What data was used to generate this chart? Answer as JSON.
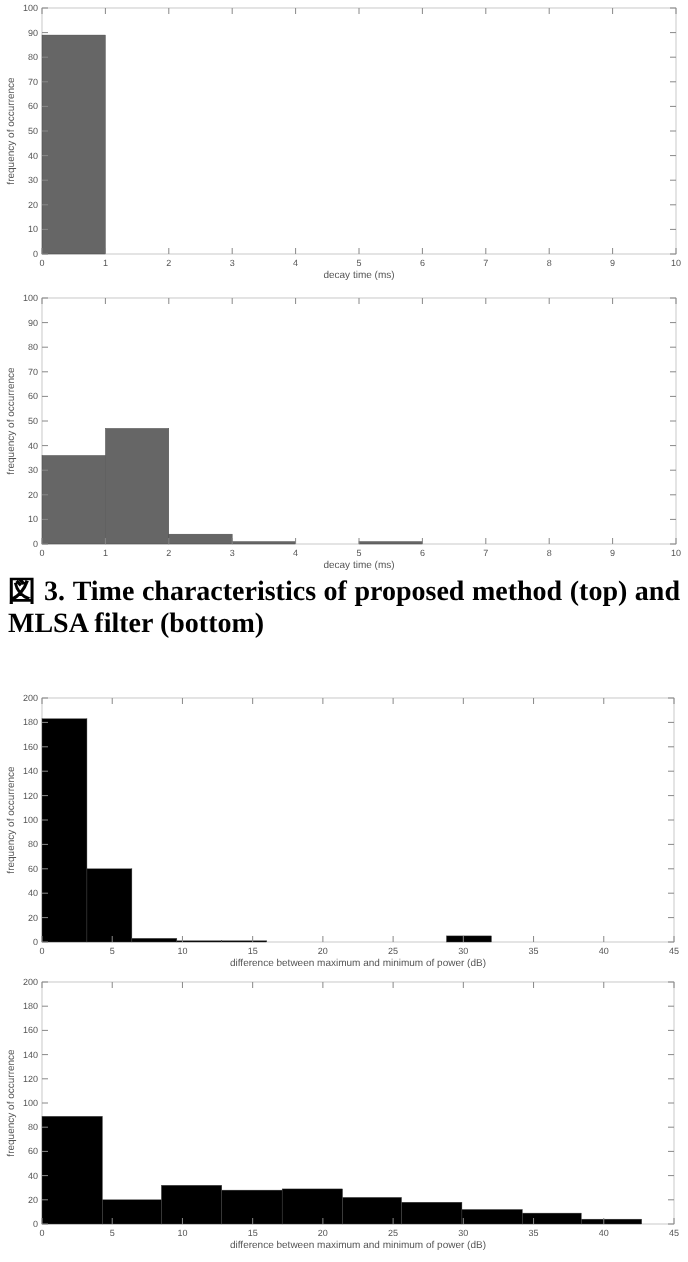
{
  "chart_data": [
    {
      "type": "histogram",
      "xlabel": "decay time (ms)",
      "ylabel": "frequency of occurrence",
      "bins": [
        0,
        1,
        2,
        3,
        4,
        5,
        6,
        7,
        8,
        9,
        10
      ],
      "values": [
        89,
        0,
        0,
        0,
        0,
        0,
        0,
        0,
        0,
        0
      ],
      "color": "#666666",
      "xlim": [
        0,
        10
      ],
      "ylim": [
        0,
        100
      ],
      "xticks": [
        0,
        1,
        2,
        3,
        4,
        5,
        6,
        7,
        8,
        9,
        10
      ],
      "yticks": [
        0,
        10,
        20,
        30,
        40,
        50,
        60,
        70,
        80,
        90,
        100
      ]
    },
    {
      "type": "histogram",
      "xlabel": "decay time (ms)",
      "ylabel": "frequency of occurrence",
      "bins": [
        0,
        1,
        2,
        3,
        4,
        5,
        6,
        7,
        8,
        9,
        10
      ],
      "values": [
        36,
        47,
        4,
        1,
        0,
        1,
        0,
        0,
        0,
        0
      ],
      "color": "#666666",
      "xlim": [
        0,
        10
      ],
      "ylim": [
        0,
        100
      ],
      "xticks": [
        0,
        1,
        2,
        3,
        4,
        5,
        6,
        7,
        8,
        9,
        10
      ],
      "yticks": [
        0,
        10,
        20,
        30,
        40,
        50,
        60,
        70,
        80,
        90,
        100
      ],
      "annotations": [
        "図 3. Time characteristics of proposed method (top) and MLSA filter (bottom)"
      ]
    },
    {
      "type": "histogram",
      "xlabel": "difference between maximum and minimum of power (dB)",
      "ylabel": "frequency of occurrence",
      "bins": [
        0,
        3.2,
        6.4,
        9.6,
        12.8,
        16,
        19.2,
        22.4,
        25.6,
        28.8,
        32
      ],
      "values": [
        183,
        60,
        3,
        1,
        1,
        0,
        0,
        0,
        0,
        5
      ],
      "color": "#000000",
      "xlim": [
        0,
        45
      ],
      "ylim": [
        0,
        200
      ],
      "xticks": [
        0,
        5,
        10,
        15,
        20,
        25,
        30,
        35,
        40,
        45
      ],
      "yticks": [
        0,
        20,
        40,
        60,
        80,
        100,
        120,
        140,
        160,
        180,
        200
      ]
    },
    {
      "type": "histogram",
      "xlabel": "difference between maximum and minimum of power (dB)",
      "ylabel": "frequency of occurrence",
      "bins": [
        0,
        4.3,
        8.5,
        12.8,
        17.1,
        21.4,
        25.6,
        29.9,
        34.2,
        38.4,
        42.7
      ],
      "values": [
        89,
        20,
        32,
        28,
        29,
        22,
        18,
        12,
        9,
        4
      ],
      "color": "#000000",
      "xlim": [
        0,
        45
      ],
      "ylim": [
        0,
        200
      ],
      "xticks": [
        0,
        5,
        10,
        15,
        20,
        25,
        30,
        35,
        40,
        45
      ],
      "yticks": [
        0,
        20,
        40,
        60,
        80,
        100,
        120,
        140,
        160,
        180,
        200
      ]
    }
  ]
}
